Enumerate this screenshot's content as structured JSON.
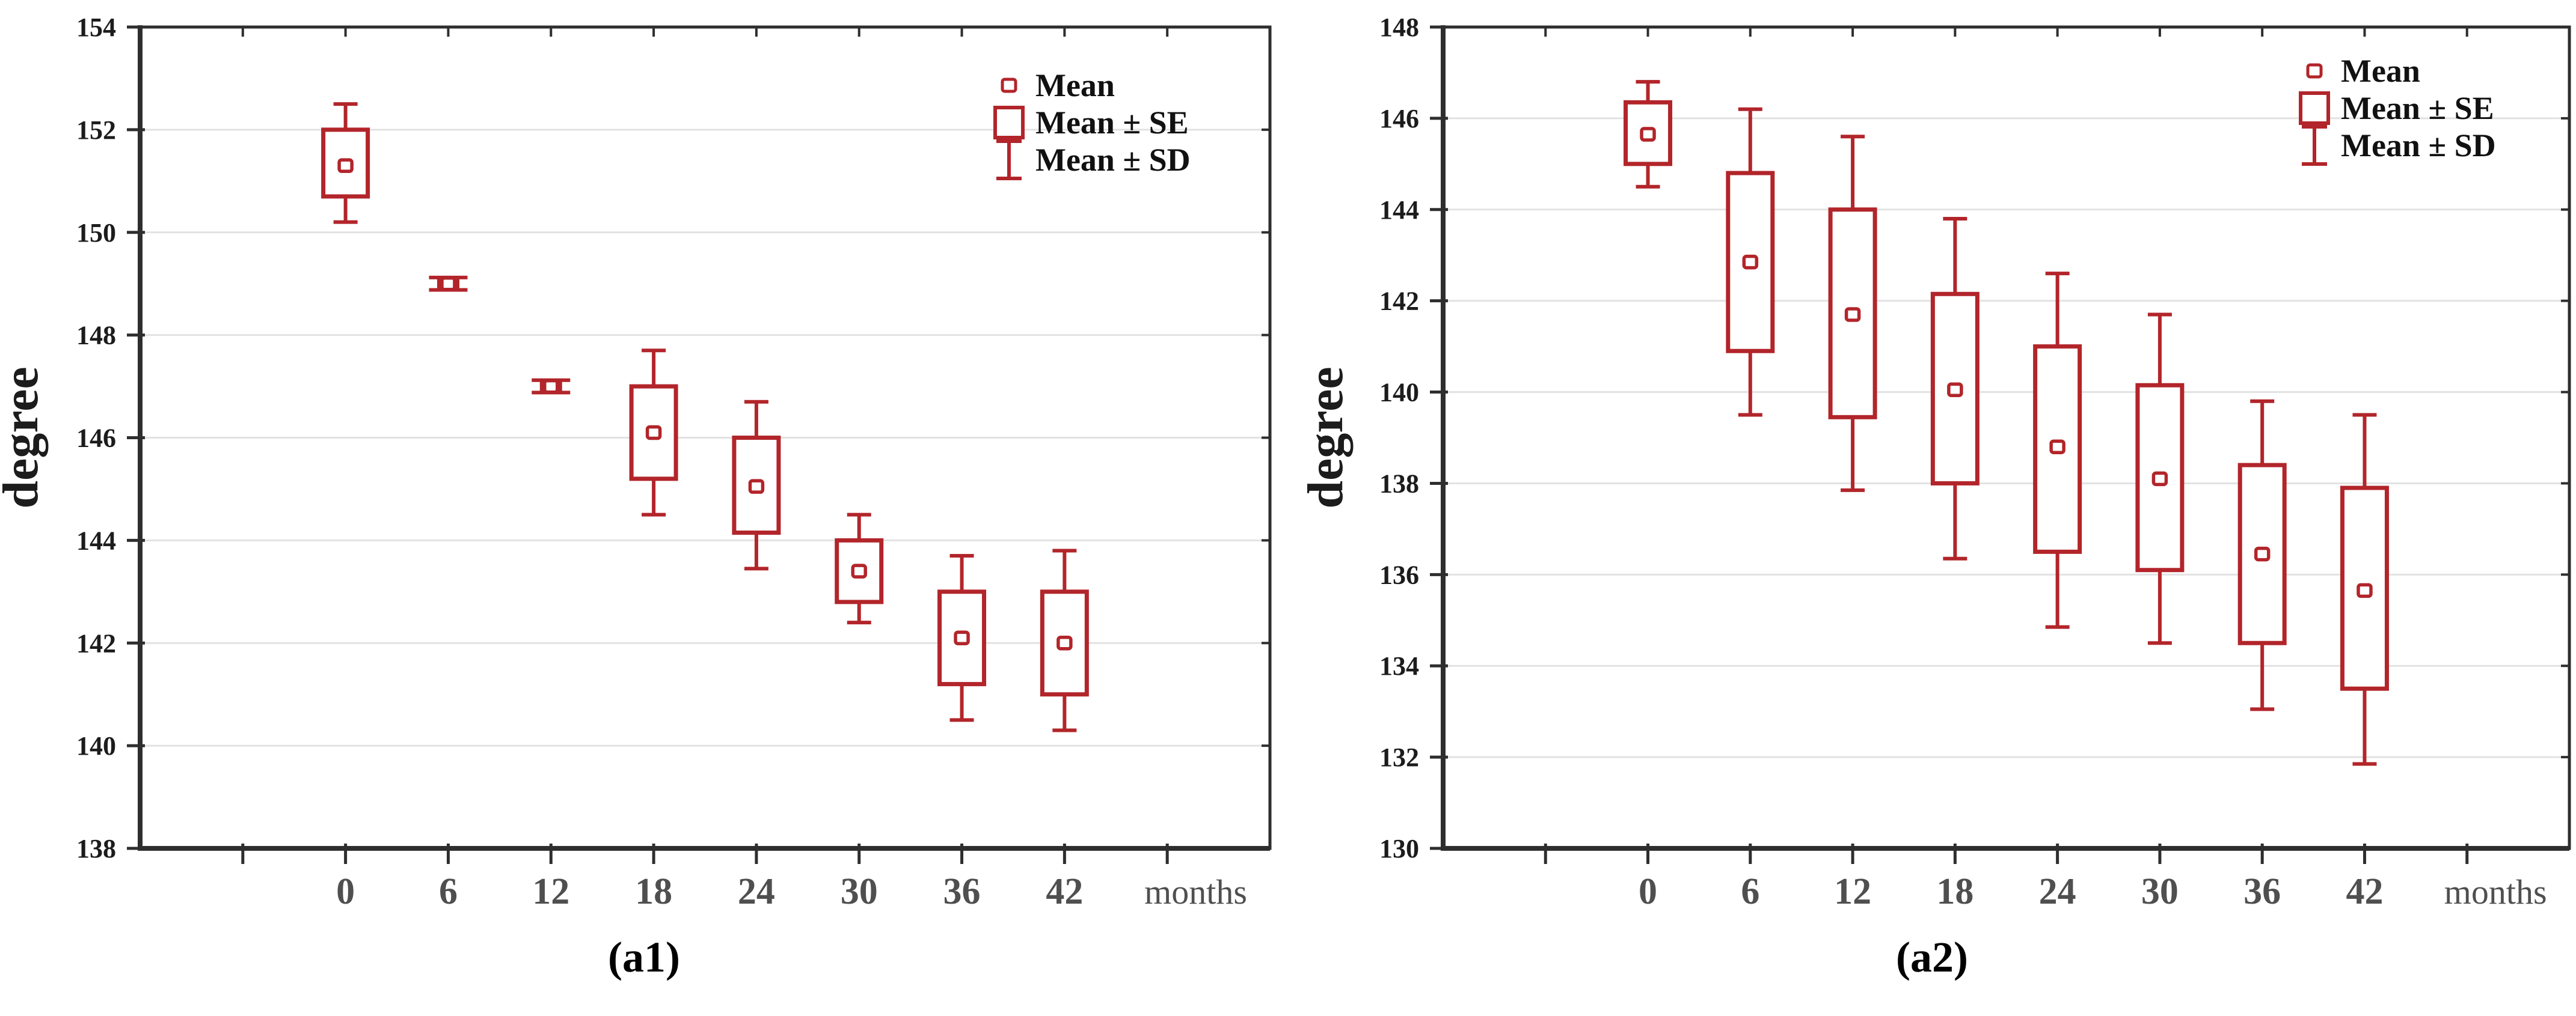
{
  "figure": {
    "background": "#ffffff",
    "description": "Two box-whisker panels of joint angle (degree) versus follow-up time in months"
  },
  "colors": {
    "box_red": "#b2252a",
    "grid": "#e2e2e2",
    "axis": "#2e2e2e",
    "y_tick_label": "#1c1c1c",
    "x_tick_label": "#4f4f4f",
    "legend_text": "#111111"
  },
  "legend": {
    "items": [
      {
        "icon": "mean-square-icon",
        "label": "Mean"
      },
      {
        "icon": "se-box-icon",
        "label": "Mean ± SE"
      },
      {
        "icon": "sd-whisker-icon",
        "label": "Mean ± SD"
      }
    ]
  },
  "chart_data": [
    {
      "type": "box",
      "id": "a1",
      "caption": "(a1)",
      "ylabel": "degree",
      "xlabel": "months",
      "ylim": [
        138,
        154
      ],
      "ytick_step": 2,
      "grid": true,
      "legend_position": "top-right",
      "y_tick_labels": [
        "154",
        "152",
        "150",
        "148",
        "146",
        "144",
        "142",
        "140",
        "138"
      ],
      "categories": [
        "0",
        "6",
        "12",
        "18",
        "24",
        "30",
        "36",
        "42"
      ],
      "series": [
        {
          "month": "0",
          "mean": 151.3,
          "se_low": 150.7,
          "se_high": 152.0,
          "sd_low": 150.2,
          "sd_high": 152.5
        },
        {
          "month": "6",
          "mean": 149.0,
          "se_low": 148.93,
          "se_high": 149.07,
          "sd_low": 148.88,
          "sd_high": 149.12
        },
        {
          "month": "12",
          "mean": 147.0,
          "se_low": 146.93,
          "se_high": 147.07,
          "sd_low": 146.88,
          "sd_high": 147.12
        },
        {
          "month": "18",
          "mean": 146.1,
          "se_low": 145.2,
          "se_high": 147.0,
          "sd_low": 144.5,
          "sd_high": 147.7
        },
        {
          "month": "24",
          "mean": 145.05,
          "se_low": 144.15,
          "se_high": 146.0,
          "sd_low": 143.45,
          "sd_high": 146.7
        },
        {
          "month": "30",
          "mean": 143.4,
          "se_low": 142.8,
          "se_high": 144.0,
          "sd_low": 142.4,
          "sd_high": 144.5
        },
        {
          "month": "36",
          "mean": 142.1,
          "se_low": 141.2,
          "se_high": 143.0,
          "sd_low": 140.5,
          "sd_high": 143.7
        },
        {
          "month": "42",
          "mean": 142.0,
          "se_low": 141.0,
          "se_high": 143.0,
          "sd_low": 140.3,
          "sd_high": 143.8
        }
      ]
    },
    {
      "type": "box",
      "id": "a2",
      "caption": "(a2)",
      "ylabel": "degree",
      "xlabel": "months",
      "ylim": [
        130,
        148
      ],
      "ytick_step": 2,
      "grid": true,
      "legend_position": "top-right",
      "y_tick_labels": [
        "148",
        "146",
        "144",
        "142",
        "140",
        "138",
        "136",
        "134",
        "132",
        "130"
      ],
      "categories": [
        "0",
        "6",
        "12",
        "18",
        "24",
        "30",
        "36",
        "42"
      ],
      "series": [
        {
          "month": "0",
          "mean": 145.65,
          "se_low": 145.0,
          "se_high": 146.35,
          "sd_low": 144.5,
          "sd_high": 146.8
        },
        {
          "month": "6",
          "mean": 142.85,
          "se_low": 140.9,
          "se_high": 144.8,
          "sd_low": 139.5,
          "sd_high": 146.2
        },
        {
          "month": "12",
          "mean": 141.7,
          "se_low": 139.45,
          "se_high": 144.0,
          "sd_low": 137.85,
          "sd_high": 145.6
        },
        {
          "month": "18",
          "mean": 140.05,
          "se_low": 138.0,
          "se_high": 142.15,
          "sd_low": 136.35,
          "sd_high": 143.8
        },
        {
          "month": "24",
          "mean": 138.8,
          "se_low": 136.5,
          "se_high": 141.0,
          "sd_low": 134.85,
          "sd_high": 142.6
        },
        {
          "month": "30",
          "mean": 138.1,
          "se_low": 136.1,
          "se_high": 140.15,
          "sd_low": 134.5,
          "sd_high": 141.7
        },
        {
          "month": "36",
          "mean": 136.45,
          "se_low": 134.5,
          "se_high": 138.4,
          "sd_low": 133.05,
          "sd_high": 139.8
        },
        {
          "month": "42",
          "mean": 135.65,
          "se_low": 133.5,
          "se_high": 137.9,
          "sd_low": 131.85,
          "sd_high": 139.5
        }
      ]
    }
  ]
}
